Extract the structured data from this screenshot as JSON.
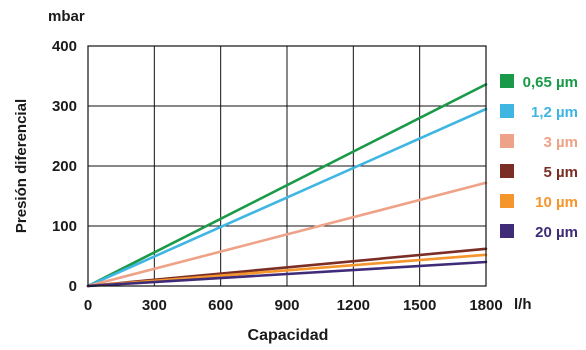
{
  "chart_data": {
    "type": "line",
    "xlabel": "Capacidad",
    "ylabel": "Presión diferencial",
    "x_unit": "l/h",
    "y_unit": "mbar",
    "xlim": [
      0,
      1800
    ],
    "ylim": [
      0,
      400
    ],
    "x_ticks": [
      0,
      300,
      600,
      900,
      1200,
      1500,
      1800
    ],
    "y_ticks": [
      0,
      100,
      200,
      300,
      400
    ],
    "grid": true,
    "legend_position": "right",
    "series": [
      {
        "name": "0,65 µm",
        "color": "#1a9a48",
        "x": [
          0,
          1800
        ],
        "y": [
          0,
          336
        ]
      },
      {
        "name": "1,2 µm",
        "color": "#3fb6e2",
        "x": [
          0,
          1800
        ],
        "y": [
          0,
          295
        ]
      },
      {
        "name": "3 µm",
        "color": "#eea287",
        "x": [
          0,
          1800
        ],
        "y": [
          0,
          172
        ]
      },
      {
        "name": "5 µm",
        "color": "#7a2e25",
        "x": [
          0,
          1800
        ],
        "y": [
          0,
          62
        ]
      },
      {
        "name": "10 µm",
        "color": "#f5962c",
        "x": [
          0,
          1800
        ],
        "y": [
          0,
          52
        ]
      },
      {
        "name": "20 µm",
        "color": "#3f2b78",
        "x": [
          0,
          1800
        ],
        "y": [
          0,
          40
        ]
      }
    ]
  }
}
